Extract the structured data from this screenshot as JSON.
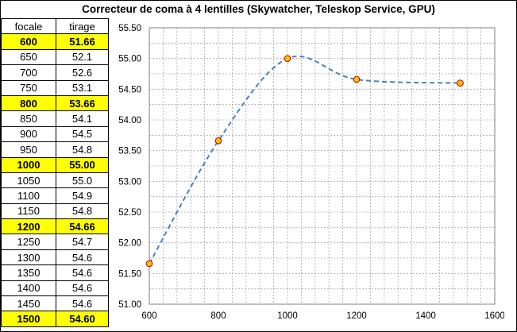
{
  "chart_data": {
    "type": "line",
    "title": "Correcteur de coma à 4 lentilles (Skywatcher, Teleskop Service, GPU)",
    "table": {
      "headers": [
        "focale",
        "tirage"
      ],
      "rows": [
        {
          "focale": "600",
          "tirage": "51.66",
          "highlight": true
        },
        {
          "focale": "650",
          "tirage": "52.1",
          "highlight": false
        },
        {
          "focale": "700",
          "tirage": "52.6",
          "highlight": false
        },
        {
          "focale": "750",
          "tirage": "53.1",
          "highlight": false
        },
        {
          "focale": "800",
          "tirage": "53.66",
          "highlight": true
        },
        {
          "focale": "850",
          "tirage": "54.1",
          "highlight": false
        },
        {
          "focale": "900",
          "tirage": "54.5",
          "highlight": false
        },
        {
          "focale": "950",
          "tirage": "54.8",
          "highlight": false
        },
        {
          "focale": "1000",
          "tirage": "55.00",
          "highlight": true
        },
        {
          "focale": "1050",
          "tirage": "55.0",
          "highlight": false
        },
        {
          "focale": "1100",
          "tirage": "54.9",
          "highlight": false
        },
        {
          "focale": "1150",
          "tirage": "54.8",
          "highlight": false
        },
        {
          "focale": "1200",
          "tirage": "54.66",
          "highlight": true
        },
        {
          "focale": "1250",
          "tirage": "54.7",
          "highlight": false
        },
        {
          "focale": "1300",
          "tirage": "54.6",
          "highlight": false
        },
        {
          "focale": "1350",
          "tirage": "54.6",
          "highlight": false
        },
        {
          "focale": "1400",
          "tirage": "54.6",
          "highlight": false
        },
        {
          "focale": "1450",
          "tirage": "54.6",
          "highlight": false
        },
        {
          "focale": "1500",
          "tirage": "54.60",
          "highlight": true
        }
      ]
    },
    "series": [
      {
        "x": [
          600,
          800,
          1000,
          1200,
          1500
        ],
        "y": [
          51.66,
          53.66,
          55.0,
          54.66,
          54.6
        ],
        "line_color": "#4f81bd",
        "line_style": "dashed",
        "smooth": true,
        "marker_fill": "#ffc000",
        "marker_stroke": "#c00000"
      }
    ],
    "xlim": [
      600,
      1600
    ],
    "xticks": [
      600,
      800,
      1000,
      1200,
      1400,
      1600
    ],
    "ylim": [
      51.0,
      55.5
    ],
    "yticks": [
      "51.00",
      "51.50",
      "52.00",
      "52.50",
      "53.00",
      "53.50",
      "54.00",
      "54.50",
      "55.00",
      "55.50"
    ],
    "grid": true,
    "legend": "none"
  }
}
